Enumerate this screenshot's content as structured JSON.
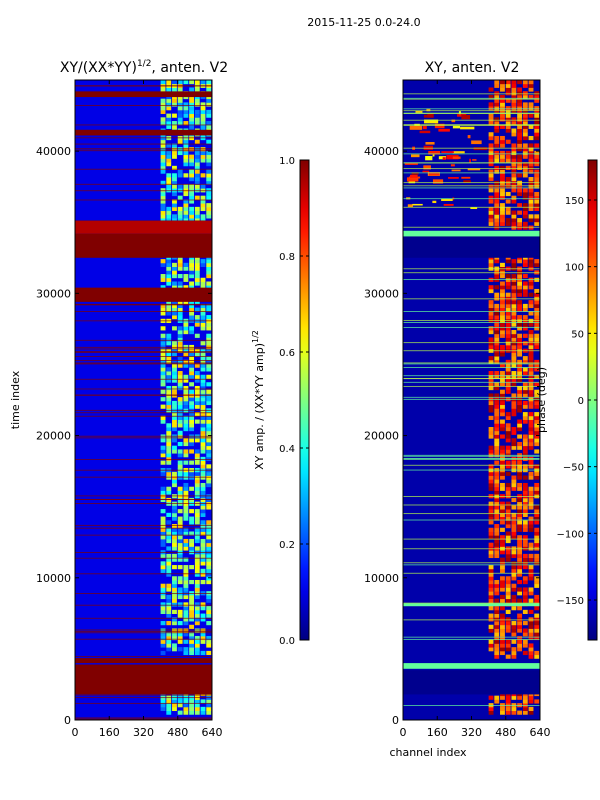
{
  "figure": {
    "suptitle": "2015-11-25 0.0-24.0"
  },
  "chart_data": [
    {
      "type": "heatmap",
      "title_prefix": "XY/(XX*YY)",
      "title_exponent": "1/2",
      "title_suffix": ", anten. V2",
      "xlabel": "",
      "ylabel": "time index",
      "xlim": [
        0,
        640
      ],
      "ylim": [
        0,
        45000
      ],
      "xticks": [
        0,
        160,
        320,
        480,
        640
      ],
      "xtick_labels": [
        "0",
        "160",
        "320",
        "480",
        "640"
      ],
      "yticks": [
        0,
        10000,
        20000,
        30000,
        40000
      ],
      "ytick_labels": [
        "0",
        "10000",
        "20000",
        "30000",
        "40000"
      ],
      "colorbar": {
        "label_prefix": "XY amp. / (XX*YY amp)",
        "label_exponent": "1/2",
        "range": [
          0.0,
          1.0
        ],
        "ticks": [
          0.0,
          0.2,
          0.4,
          0.6,
          0.8,
          1.0
        ],
        "tick_labels": [
          "0.0",
          "0.2",
          "0.4",
          "0.6",
          "0.8",
          "1.0"
        ],
        "colormap": "jet"
      },
      "background_value": 0.1,
      "bands": [
        {
          "y0": 32500,
          "y1": 34200,
          "value": 1.0
        },
        {
          "y0": 1800,
          "y1": 3900,
          "value": 1.0
        },
        {
          "y0": 4000,
          "y1": 4350,
          "value": 1.0
        },
        {
          "y0": 29400,
          "y1": 30400,
          "value": 1.0
        },
        {
          "y0": 41100,
          "y1": 41500,
          "value": 1.0
        },
        {
          "y0": 43800,
          "y1": 44200,
          "value": 1.0
        },
        {
          "y0": 34200,
          "y1": 35100,
          "value": 0.95
        }
      ],
      "active_region": {
        "x0": 400,
        "x1": 640,
        "value_range": [
          0.2,
          0.7
        ]
      },
      "active_gaps": [
        [
          1800,
          4350
        ],
        [
          32500,
          34200
        ]
      ]
    },
    {
      "type": "heatmap",
      "title": "XY, anten. V2",
      "xlabel": "channel index",
      "ylabel": "",
      "xlim": [
        0,
        640
      ],
      "ylim": [
        0,
        45000
      ],
      "xticks": [
        0,
        160,
        320,
        480,
        640
      ],
      "xtick_labels": [
        "0",
        "160",
        "320",
        "480",
        "640"
      ],
      "yticks": [
        0,
        10000,
        20000,
        30000,
        40000
      ],
      "ytick_labels": [
        "0",
        "10000",
        "20000",
        "30000",
        "40000"
      ],
      "colorbar": {
        "label": "phase (deg)",
        "range": [
          -180,
          180
        ],
        "ticks": [
          -150,
          -100,
          -50,
          0,
          50,
          100,
          150
        ],
        "tick_labels": [
          "−150",
          "−100",
          "−50",
          "0",
          "50",
          "100",
          "150"
        ],
        "colormap": "jet"
      },
      "background_value": -165,
      "bands": [
        {
          "y0": 3600,
          "y1": 4000,
          "value": -10
        },
        {
          "y0": 34000,
          "y1": 34400,
          "value": -10
        },
        {
          "y0": 1800,
          "y1": 3500,
          "value": -175
        },
        {
          "y0": 32500,
          "y1": 34000,
          "value": -175
        },
        {
          "y0": 8000,
          "y1": 8200,
          "value": -10
        }
      ],
      "active_region": {
        "x0": 400,
        "x1": 640,
        "value_range": [
          60,
          175
        ]
      },
      "active_gaps": [
        [
          1800,
          4300
        ],
        [
          32500,
          34400
        ]
      ],
      "hot_region": {
        "y0": 36000,
        "y1": 43000,
        "x0": 0,
        "x1": 420,
        "value_range": [
          40,
          170
        ]
      }
    }
  ]
}
